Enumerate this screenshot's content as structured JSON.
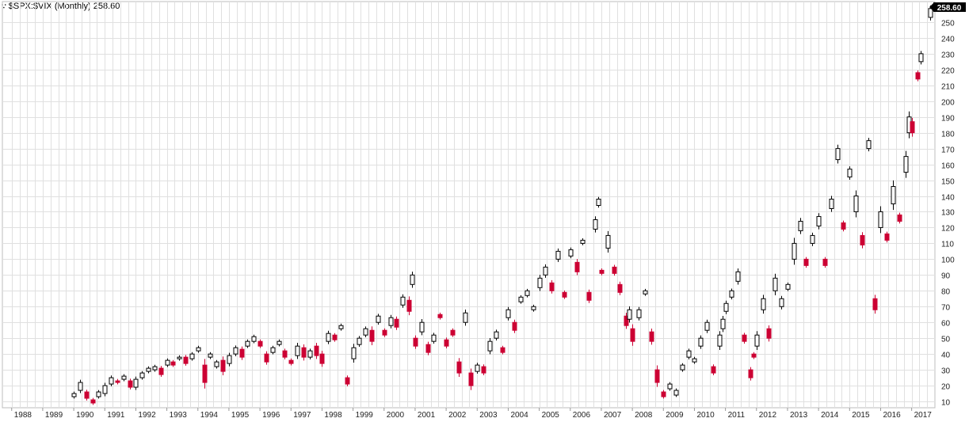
{
  "header": {
    "logo_icon": "stockcharts-logo-icon",
    "title": "$SPX:$VIX (Monthly) 258.60",
    "last_value_label": "258.60"
  },
  "colors": {
    "up": "#000000",
    "down": "#cc0033",
    "grid": "#e0e0e0",
    "badge": "#000000"
  },
  "chart_data": {
    "type": "candlestick",
    "title": "$SPX:$VIX (Monthly)",
    "last_value": 258.6,
    "grid": true,
    "x_axis": {
      "labels": [
        "1988",
        "1989",
        "1990",
        "1991",
        "1992",
        "1993",
        "1994",
        "1995",
        "1996",
        "1997",
        "1998",
        "1999",
        "2000",
        "2001",
        "2002",
        "2003",
        "2004",
        "2005",
        "2006",
        "2007",
        "2008",
        "2009",
        "2010",
        "2011",
        "2012",
        "2013",
        "2014",
        "2015",
        "2016",
        "2017"
      ],
      "range": [
        1987.7,
        2017.75
      ]
    },
    "y_axis": {
      "ticks": [
        10,
        20,
        30,
        40,
        50,
        60,
        70,
        80,
        90,
        100,
        110,
        120,
        130,
        140,
        150,
        160,
        170,
        180,
        190,
        200,
        210,
        220,
        230,
        240,
        250
      ],
      "range": [
        6,
        263
      ],
      "position": "right"
    },
    "series": [
      {
        "values": [
          [
            1990.0,
            13,
            15
          ],
          [
            1990.2,
            17,
            22
          ],
          [
            1990.4,
            16,
            12
          ],
          [
            1990.6,
            11,
            9
          ],
          [
            1990.8,
            13,
            16
          ],
          [
            1991.0,
            15,
            20
          ],
          [
            1991.2,
            21,
            25
          ],
          [
            1991.4,
            23,
            22
          ],
          [
            1991.6,
            24,
            26
          ],
          [
            1991.8,
            23,
            19
          ],
          [
            1992.0,
            19,
            24
          ],
          [
            1992.2,
            25,
            28
          ],
          [
            1992.4,
            29,
            31
          ],
          [
            1992.6,
            30,
            32
          ],
          [
            1992.8,
            31,
            27
          ],
          [
            1993.0,
            33,
            36
          ],
          [
            1993.2,
            35,
            33
          ],
          [
            1993.4,
            37,
            38
          ],
          [
            1993.6,
            38,
            34
          ],
          [
            1993.8,
            37,
            40
          ],
          [
            1994.0,
            42,
            44
          ],
          [
            1994.2,
            33,
            22
          ],
          [
            1994.4,
            38,
            40
          ],
          [
            1994.6,
            32,
            35
          ],
          [
            1994.8,
            36,
            29
          ],
          [
            1995.0,
            34,
            39
          ],
          [
            1995.2,
            40,
            44
          ],
          [
            1995.4,
            43,
            38
          ],
          [
            1995.6,
            45,
            48
          ],
          [
            1995.8,
            48,
            51
          ],
          [
            1996.0,
            48,
            45
          ],
          [
            1996.2,
            40,
            35
          ],
          [
            1996.4,
            41,
            44
          ],
          [
            1996.6,
            46,
            48
          ],
          [
            1996.8,
            42,
            38
          ],
          [
            1997.0,
            36,
            34
          ],
          [
            1997.2,
            39,
            45
          ],
          [
            1997.4,
            44,
            38
          ],
          [
            1997.6,
            38,
            42
          ],
          [
            1997.8,
            45,
            39
          ],
          [
            1998.0,
            40,
            34
          ],
          [
            1998.2,
            48,
            53
          ],
          [
            1998.4,
            52,
            49
          ],
          [
            1998.6,
            56,
            58
          ],
          [
            1998.8,
            25,
            21
          ],
          [
            1999.0,
            37,
            44
          ],
          [
            1999.2,
            46,
            50
          ],
          [
            1999.4,
            52,
            56
          ],
          [
            1999.6,
            55,
            48
          ],
          [
            1999.8,
            60,
            64
          ],
          [
            2000.0,
            55,
            52
          ],
          [
            2000.2,
            58,
            63
          ],
          [
            2000.4,
            62,
            57
          ],
          [
            2000.6,
            71,
            76
          ],
          [
            2000.8,
            74,
            67
          ],
          [
            2000.9,
            84,
            90
          ],
          [
            2001.0,
            50,
            45
          ],
          [
            2001.2,
            54,
            60
          ],
          [
            2001.4,
            46,
            41
          ],
          [
            2001.6,
            48,
            52
          ],
          [
            2001.8,
            65,
            63
          ],
          [
            2002.0,
            49,
            45
          ],
          [
            2002.2,
            55,
            52
          ],
          [
            2002.4,
            35,
            28
          ],
          [
            2002.6,
            60,
            66
          ],
          [
            2002.8,
            28,
            20
          ],
          [
            2003.0,
            29,
            33
          ],
          [
            2003.2,
            32,
            28
          ],
          [
            2003.4,
            42,
            48
          ],
          [
            2003.6,
            50,
            54
          ],
          [
            2003.8,
            44,
            41
          ],
          [
            2004.0,
            63,
            68
          ],
          [
            2004.2,
            60,
            55
          ],
          [
            2004.4,
            73,
            76
          ],
          [
            2004.6,
            77,
            80
          ],
          [
            2004.8,
            68,
            70
          ],
          [
            2005.0,
            82,
            88
          ],
          [
            2005.2,
            90,
            95
          ],
          [
            2005.4,
            85,
            80
          ],
          [
            2005.6,
            100,
            105
          ],
          [
            2005.8,
            79,
            76
          ],
          [
            2006.0,
            102,
            106
          ],
          [
            2006.2,
            98,
            92
          ],
          [
            2006.4,
            110,
            112
          ],
          [
            2006.6,
            79,
            74
          ],
          [
            2006.8,
            119,
            125
          ],
          [
            2006.9,
            134,
            138
          ],
          [
            2007.0,
            93,
            91
          ],
          [
            2007.2,
            107,
            115
          ],
          [
            2007.4,
            95,
            91
          ],
          [
            2007.6,
            84,
            79
          ],
          [
            2007.8,
            64,
            58
          ],
          [
            2007.9,
            62,
            68
          ],
          [
            2008.0,
            56,
            48
          ],
          [
            2008.2,
            63,
            68
          ],
          [
            2008.4,
            78,
            80
          ],
          [
            2008.6,
            54,
            48
          ],
          [
            2008.8,
            30,
            22
          ],
          [
            2009.0,
            16,
            13
          ],
          [
            2009.2,
            18,
            21
          ],
          [
            2009.4,
            14,
            17
          ],
          [
            2009.6,
            30,
            33
          ],
          [
            2009.8,
            38,
            42
          ],
          [
            2010.0,
            35,
            37
          ],
          [
            2010.2,
            45,
            50
          ],
          [
            2010.4,
            55,
            60
          ],
          [
            2010.6,
            32,
            28
          ],
          [
            2010.8,
            45,
            52
          ],
          [
            2010.9,
            56,
            62
          ],
          [
            2011.0,
            67,
            72
          ],
          [
            2011.2,
            76,
            80
          ],
          [
            2011.4,
            86,
            92
          ],
          [
            2011.6,
            52,
            48
          ],
          [
            2011.8,
            30,
            25
          ],
          [
            2011.9,
            40,
            38
          ],
          [
            2012.0,
            45,
            52
          ],
          [
            2012.2,
            68,
            75
          ],
          [
            2012.4,
            56,
            50
          ],
          [
            2012.6,
            80,
            88
          ],
          [
            2012.8,
            70,
            75
          ],
          [
            2013.0,
            81,
            84
          ],
          [
            2013.2,
            100,
            110
          ],
          [
            2013.4,
            118,
            124
          ],
          [
            2013.6,
            100,
            96
          ],
          [
            2013.8,
            110,
            115
          ],
          [
            2014.0,
            121,
            127
          ],
          [
            2014.2,
            100,
            96
          ],
          [
            2014.4,
            132,
            138
          ],
          [
            2014.6,
            163,
            170
          ],
          [
            2014.8,
            123,
            119
          ],
          [
            2015.0,
            152,
            157
          ],
          [
            2015.2,
            130,
            140
          ],
          [
            2015.4,
            115,
            109
          ],
          [
            2015.6,
            170,
            175
          ],
          [
            2015.8,
            75,
            68
          ],
          [
            2016.0,
            120,
            130
          ],
          [
            2016.2,
            116,
            112
          ],
          [
            2016.4,
            135,
            146
          ],
          [
            2016.6,
            128,
            124
          ],
          [
            2016.8,
            155,
            165
          ],
          [
            2016.9,
            180,
            190
          ],
          [
            2017.0,
            187,
            180
          ],
          [
            2017.2,
            218,
            214
          ],
          [
            2017.3,
            225,
            230
          ],
          [
            2017.6,
            253,
            258.6
          ]
        ]
      }
    ]
  }
}
